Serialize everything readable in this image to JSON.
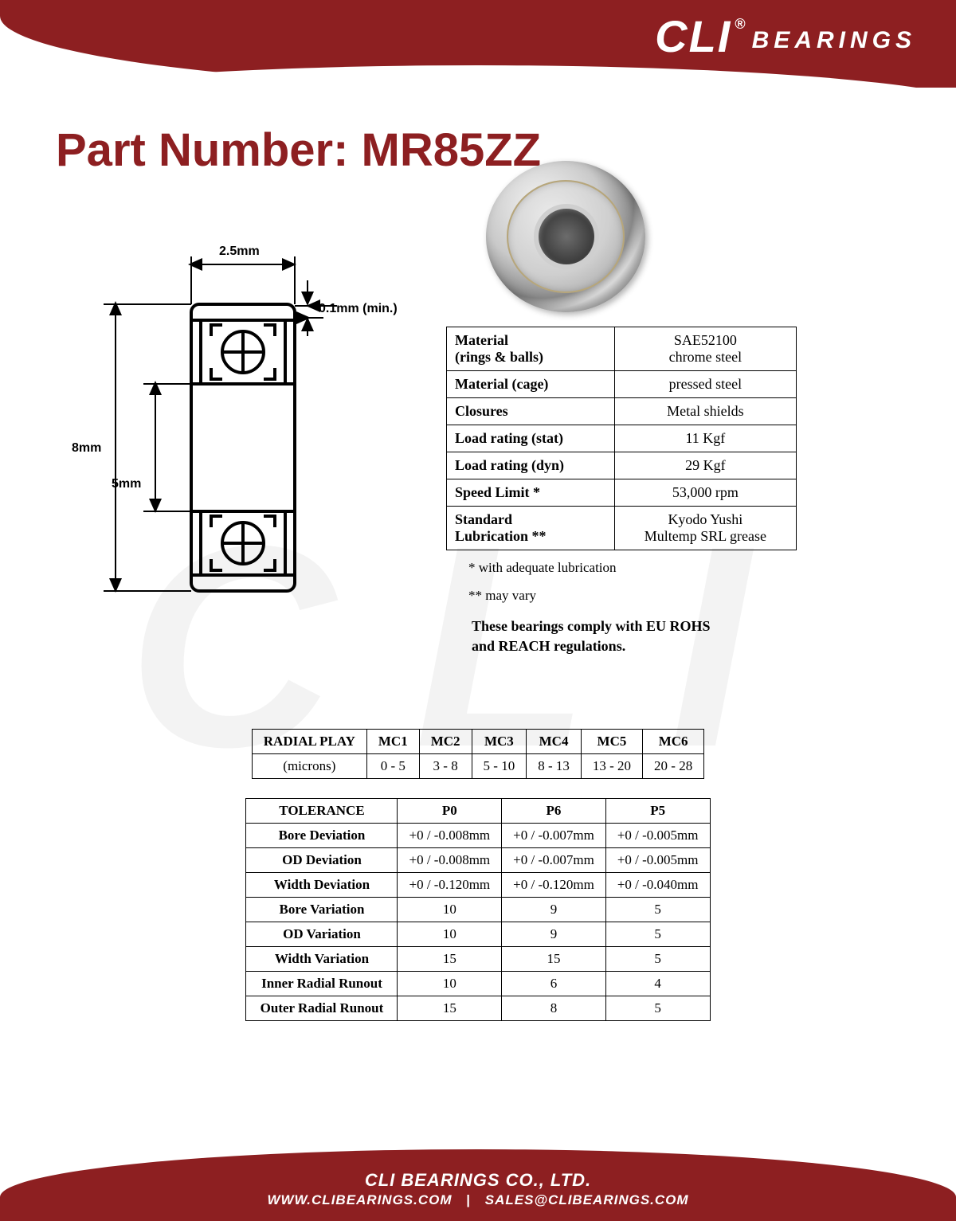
{
  "brand": {
    "logo_main": "CLI",
    "logo_reg": "®",
    "logo_sub": "BEARINGS",
    "watermark": "CLI",
    "primary_color": "#8d1f21",
    "text_on_primary": "#ffffff"
  },
  "title": "Part Number: MR85ZZ",
  "diagram": {
    "width_label": "2.5mm",
    "chamfer_label": "0.1mm (min.)",
    "od_label": "8mm",
    "bore_label": "5mm"
  },
  "spec_table": {
    "rows": [
      {
        "label": "Material\n(rings & balls)",
        "value": "SAE52100\nchrome steel"
      },
      {
        "label": "Material (cage)",
        "value": "pressed steel"
      },
      {
        "label": "Closures",
        "value": "Metal shields"
      },
      {
        "label": "Load rating (stat)",
        "value": "11 Kgf"
      },
      {
        "label": "Load rating (dyn)",
        "value": "29 Kgf"
      },
      {
        "label": "Speed Limit *",
        "value": "53,000 rpm"
      },
      {
        "label": "Standard\nLubrication  **",
        "value": "Kyodo Yushi\nMultemp SRL grease"
      }
    ],
    "note1": "  * with adequate lubrication",
    "note2": "** may vary",
    "compliance": "These bearings comply with EU ROHS\nand REACH  regulations."
  },
  "radial_play": {
    "header": "RADIAL PLAY",
    "unit": "(microns)",
    "columns": [
      "MC1",
      "MC2",
      "MC3",
      "MC4",
      "MC5",
      "MC6"
    ],
    "values": [
      "0 - 5",
      "3 - 8",
      "5 - 10",
      "8 - 13",
      "13 - 20",
      "20 - 28"
    ]
  },
  "tolerance": {
    "header": "TOLERANCE",
    "columns": [
      "P0",
      "P6",
      "P5"
    ],
    "rows": [
      {
        "label": "Bore Deviation",
        "v": [
          "+0 / -0.008mm",
          "+0 / -0.007mm",
          "+0 / -0.005mm"
        ]
      },
      {
        "label": "OD Deviation",
        "v": [
          "+0 / -0.008mm",
          "+0 / -0.007mm",
          "+0 / -0.005mm"
        ]
      },
      {
        "label": "Width Deviation",
        "v": [
          "+0 / -0.120mm",
          "+0 / -0.120mm",
          "+0 / -0.040mm"
        ]
      },
      {
        "label": "Bore Variation",
        "v": [
          "10",
          "9",
          "5"
        ]
      },
      {
        "label": "OD Variation",
        "v": [
          "10",
          "9",
          "5"
        ]
      },
      {
        "label": "Width Variation",
        "v": [
          "15",
          "15",
          "5"
        ]
      },
      {
        "label": "Inner Radial Runout",
        "v": [
          "10",
          "6",
          "4"
        ]
      },
      {
        "label": "Outer Radial Runout",
        "v": [
          "15",
          "8",
          "5"
        ]
      }
    ]
  },
  "footer": {
    "company": "CLI BEARINGS CO., LTD.",
    "website": "WWW.CLIBEARINGS.COM",
    "email": "SALES@CLIBEARINGS.COM"
  }
}
